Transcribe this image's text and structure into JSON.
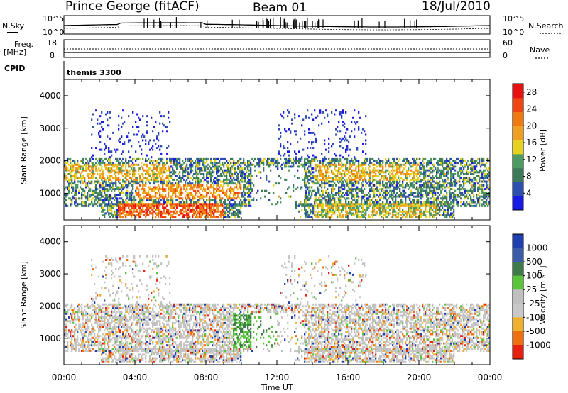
{
  "header": {
    "station": "Prince George (fitACF)",
    "beam": "Beam 01",
    "date": "18/Jul/2010"
  },
  "panels": {
    "nsky": {
      "label": "N.Sky",
      "top": "10^5",
      "bottom": "10^0"
    },
    "nsearch": {
      "label": "N.Search",
      "top": "10^5",
      "bottom": "10^0"
    },
    "freq": {
      "label_line1": "Freq.",
      "label_line2": "[MHz]",
      "top": "18",
      "bottom": "8"
    },
    "nave": {
      "label": "Nave",
      "top": "60",
      "bottom": "0"
    },
    "cpid": {
      "label": "CPID",
      "value": "themis 3300"
    }
  },
  "colors": {
    "power": [
      "#1a1ae6",
      "#2f4fb0",
      "#3e7a5a",
      "#4d9a62",
      "#e6d21e",
      "#f0a020",
      "#f07a10",
      "#f04510",
      "#e81010"
    ],
    "velocity": [
      "#1f3fb0",
      "#3b5aa8",
      "#3f7a4a",
      "#5ac43a",
      "#c0c0c0",
      "#c8c8c8",
      "#f0b030",
      "#f07010",
      "#e82010"
    ]
  },
  "chart_data": [
    {
      "type": "heatmap",
      "title": "",
      "xlabel": "Time UT",
      "ylabel": "Slant Range [km]",
      "x_ticks": [
        "00:00",
        "04:00",
        "08:00",
        "12:00",
        "16:00",
        "20:00",
        "00:00"
      ],
      "y_ticks": [
        "1000",
        "2000",
        "3000",
        "4000"
      ],
      "ylim": [
        180,
        4500
      ],
      "colorbar": {
        "label": "Power [dB]",
        "ticks": [
          "4",
          "8",
          "12",
          "16",
          "20",
          "24",
          "28"
        ],
        "range": [
          0,
          30
        ]
      }
    },
    {
      "type": "heatmap",
      "title": "",
      "xlabel": "Time UT",
      "ylabel": "Slant Range [km]",
      "x_ticks": [
        "00:00",
        "04:00",
        "08:00",
        "12:00",
        "16:00",
        "20:00",
        "00:00"
      ],
      "y_ticks": [
        "1000",
        "2000",
        "3000",
        "4000"
      ],
      "ylim": [
        180,
        4500
      ],
      "colorbar": {
        "label": "Velocity [m s^-1]",
        "ticks": [
          "1000",
          "500",
          "100",
          "25",
          "-25",
          "-100",
          "-500",
          "-1000"
        ],
        "range": [
          -1000,
          1000
        ]
      }
    }
  ]
}
